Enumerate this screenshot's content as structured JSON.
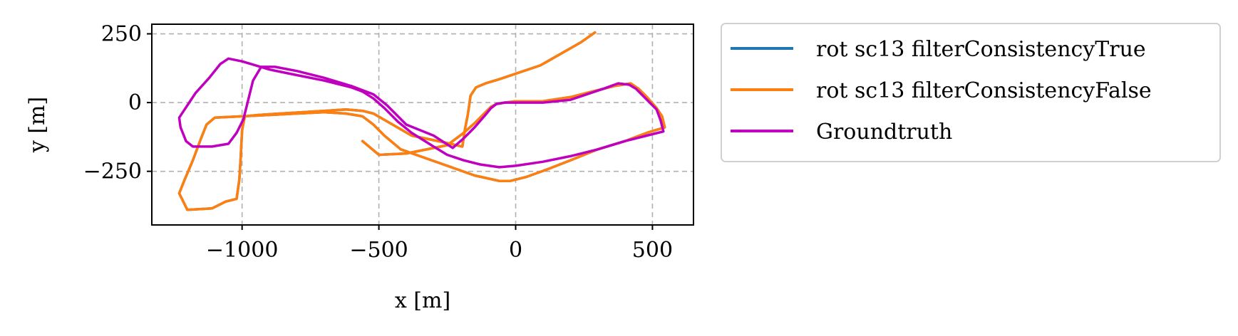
{
  "chart_data": {
    "type": "line",
    "title": "",
    "xlabel": "x [m]",
    "ylabel": "y [m]",
    "xlim": [
      -1330,
      650
    ],
    "ylim": [
      -445,
      285
    ],
    "xticks": [
      -1000,
      -500,
      0,
      500
    ],
    "yticks": [
      250,
      0,
      -250
    ],
    "xtick_labels": [
      "−1000",
      "−500",
      "0",
      "500"
    ],
    "ytick_labels": [
      "250",
      "0",
      "−250"
    ],
    "grid": true,
    "legend_position": "outside-right-top",
    "series": [
      {
        "name": "rot sc13 filterConsistencyTrue",
        "color": "#1f77b4",
        "points": [
          [
            290,
            255
          ],
          [
            240,
            220
          ],
          [
            90,
            135
          ],
          [
            -60,
            85
          ],
          [
            -110,
            70
          ],
          [
            -145,
            55
          ],
          [
            -165,
            25
          ],
          [
            -170,
            -10
          ],
          [
            -175,
            -45
          ],
          [
            -185,
            -95
          ],
          [
            -195,
            -160
          ],
          [
            -260,
            -145
          ],
          [
            -380,
            -120
          ],
          [
            -450,
            -80
          ],
          [
            -520,
            -40
          ],
          [
            -560,
            -30
          ],
          [
            -620,
            -25
          ],
          [
            -700,
            -30
          ],
          [
            -780,
            -35
          ],
          [
            -860,
            -40
          ],
          [
            -940,
            -45
          ],
          [
            -990,
            -50
          ],
          [
            -1000,
            -100
          ],
          [
            -1005,
            -200
          ],
          [
            -1010,
            -280
          ],
          [
            -1020,
            -350
          ],
          [
            -1060,
            -360
          ],
          [
            -1110,
            -385
          ],
          [
            -1200,
            -390
          ],
          [
            -1230,
            -330
          ],
          [
            -1210,
            -280
          ],
          [
            -1180,
            -210
          ],
          [
            -1150,
            -130
          ],
          [
            -1130,
            -80
          ],
          [
            -1100,
            -55
          ],
          [
            -1000,
            -50
          ],
          [
            -900,
            -45
          ],
          [
            -800,
            -40
          ],
          [
            -700,
            -35
          ],
          [
            -620,
            -40
          ],
          [
            -560,
            -50
          ],
          [
            -520,
            -80
          ],
          [
            -480,
            -120
          ],
          [
            -420,
            -170
          ],
          [
            -350,
            -195
          ],
          [
            -250,
            -230
          ],
          [
            -150,
            -265
          ],
          [
            -60,
            -285
          ],
          [
            -20,
            -285
          ],
          [
            40,
            -270
          ],
          [
            110,
            -245
          ],
          [
            200,
            -210
          ],
          [
            300,
            -170
          ],
          [
            400,
            -140
          ],
          [
            480,
            -110
          ],
          [
            545,
            -90
          ],
          [
            535,
            -50
          ],
          [
            515,
            -20
          ],
          [
            480,
            20
          ],
          [
            450,
            50
          ],
          [
            420,
            70
          ],
          [
            360,
            60
          ],
          [
            280,
            40
          ],
          [
            200,
            20
          ],
          [
            100,
            5
          ],
          [
            0,
            5
          ],
          [
            -40,
            0
          ],
          [
            -70,
            -5
          ],
          [
            -90,
            -15
          ],
          [
            -115,
            -40
          ],
          [
            -150,
            -75
          ],
          [
            -190,
            -110
          ],
          [
            -250,
            -155
          ],
          [
            -400,
            -185
          ],
          [
            -500,
            -190
          ],
          [
            -560,
            -140
          ]
        ]
      },
      {
        "name": "rot sc13 filterConsistencyFalse",
        "color": "#ff7f0e",
        "points": [
          [
            290,
            255
          ],
          [
            240,
            220
          ],
          [
            90,
            135
          ],
          [
            -60,
            85
          ],
          [
            -110,
            70
          ],
          [
            -145,
            55
          ],
          [
            -165,
            25
          ],
          [
            -170,
            -10
          ],
          [
            -175,
            -45
          ],
          [
            -185,
            -95
          ],
          [
            -195,
            -160
          ],
          [
            -260,
            -145
          ],
          [
            -380,
            -120
          ],
          [
            -450,
            -80
          ],
          [
            -520,
            -40
          ],
          [
            -560,
            -30
          ],
          [
            -620,
            -25
          ],
          [
            -700,
            -30
          ],
          [
            -780,
            -35
          ],
          [
            -860,
            -40
          ],
          [
            -940,
            -45
          ],
          [
            -990,
            -50
          ],
          [
            -1000,
            -100
          ],
          [
            -1005,
            -200
          ],
          [
            -1010,
            -280
          ],
          [
            -1020,
            -350
          ],
          [
            -1060,
            -360
          ],
          [
            -1110,
            -385
          ],
          [
            -1200,
            -390
          ],
          [
            -1230,
            -330
          ],
          [
            -1210,
            -280
          ],
          [
            -1180,
            -210
          ],
          [
            -1150,
            -130
          ],
          [
            -1130,
            -80
          ],
          [
            -1100,
            -55
          ],
          [
            -1000,
            -50
          ],
          [
            -900,
            -45
          ],
          [
            -800,
            -40
          ],
          [
            -700,
            -35
          ],
          [
            -620,
            -40
          ],
          [
            -560,
            -50
          ],
          [
            -520,
            -80
          ],
          [
            -480,
            -120
          ],
          [
            -420,
            -170
          ],
          [
            -350,
            -195
          ],
          [
            -250,
            -230
          ],
          [
            -150,
            -265
          ],
          [
            -60,
            -285
          ],
          [
            -20,
            -285
          ],
          [
            40,
            -270
          ],
          [
            110,
            -245
          ],
          [
            200,
            -210
          ],
          [
            300,
            -170
          ],
          [
            400,
            -140
          ],
          [
            480,
            -110
          ],
          [
            545,
            -90
          ],
          [
            535,
            -50
          ],
          [
            515,
            -20
          ],
          [
            480,
            20
          ],
          [
            450,
            50
          ],
          [
            420,
            70
          ],
          [
            360,
            60
          ],
          [
            280,
            40
          ],
          [
            200,
            20
          ],
          [
            100,
            5
          ],
          [
            0,
            5
          ],
          [
            -40,
            0
          ],
          [
            -70,
            -5
          ],
          [
            -90,
            -15
          ],
          [
            -115,
            -40
          ],
          [
            -150,
            -75
          ],
          [
            -190,
            -110
          ],
          [
            -250,
            -155
          ],
          [
            -400,
            -185
          ],
          [
            -500,
            -190
          ],
          [
            -560,
            -140
          ]
        ]
      },
      {
        "name": "Groundtruth",
        "color": "#bf00bf",
        "points": [
          [
            375,
            70
          ],
          [
            320,
            50
          ],
          [
            200,
            10
          ],
          [
            100,
            0
          ],
          [
            0,
            0
          ],
          [
            -40,
            0
          ],
          [
            -70,
            -5
          ],
          [
            -90,
            -20
          ],
          [
            -115,
            -50
          ],
          [
            -150,
            -90
          ],
          [
            -190,
            -130
          ],
          [
            -230,
            -165
          ],
          [
            -300,
            -120
          ],
          [
            -400,
            -80
          ],
          [
            -470,
            -10
          ],
          [
            -520,
            30
          ],
          [
            -600,
            60
          ],
          [
            -700,
            90
          ],
          [
            -800,
            115
          ],
          [
            -880,
            130
          ],
          [
            -930,
            130
          ],
          [
            -960,
            80
          ],
          [
            -995,
            -60
          ],
          [
            -1020,
            -110
          ],
          [
            -1050,
            -150
          ],
          [
            -1110,
            -160
          ],
          [
            -1180,
            -160
          ],
          [
            -1205,
            -140
          ],
          [
            -1225,
            -90
          ],
          [
            -1230,
            -55
          ],
          [
            -1170,
            35
          ],
          [
            -1120,
            90
          ],
          [
            -1080,
            140
          ],
          [
            -1050,
            160
          ],
          [
            -1000,
            150
          ],
          [
            -900,
            120
          ],
          [
            -800,
            100
          ],
          [
            -700,
            80
          ],
          [
            -600,
            55
          ],
          [
            -560,
            40
          ],
          [
            -520,
            15
          ],
          [
            -480,
            -20
          ],
          [
            -430,
            -70
          ],
          [
            -380,
            -110
          ],
          [
            -300,
            -160
          ],
          [
            -250,
            -190
          ],
          [
            -190,
            -210
          ],
          [
            -130,
            -225
          ],
          [
            -60,
            -235
          ],
          [
            0,
            -230
          ],
          [
            100,
            -215
          ],
          [
            200,
            -195
          ],
          [
            300,
            -170
          ],
          [
            400,
            -140
          ],
          [
            500,
            -115
          ],
          [
            540,
            -105
          ],
          [
            530,
            -65
          ],
          [
            515,
            -25
          ],
          [
            470,
            20
          ],
          [
            440,
            50
          ],
          [
            415,
            65
          ],
          [
            375,
            70
          ]
        ]
      }
    ]
  }
}
